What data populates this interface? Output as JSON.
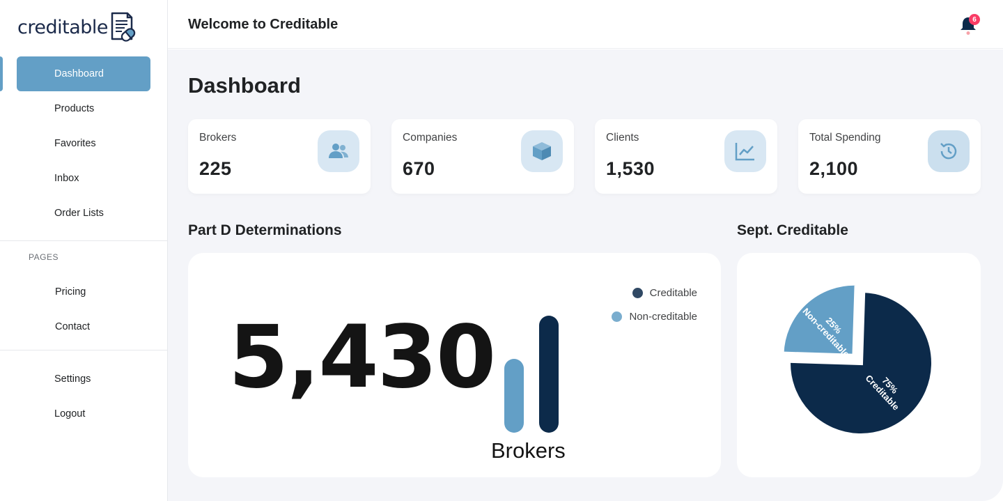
{
  "app": {
    "logo_text": "creditable",
    "welcome": "Welcome to Creditable",
    "notifications_count": "6"
  },
  "sidebar": {
    "items": [
      {
        "label": "Dashboard",
        "active": true
      },
      {
        "label": "Products"
      },
      {
        "label": "Favorites"
      },
      {
        "label": "Inbox"
      },
      {
        "label": "Order Lists"
      }
    ],
    "pages_label": "PAGES",
    "pages_items": [
      {
        "label": "Pricing"
      },
      {
        "label": "Contact"
      }
    ],
    "bottom_items": [
      {
        "label": "Settings"
      },
      {
        "label": "Logout"
      }
    ]
  },
  "main": {
    "title": "Dashboard",
    "stats": [
      {
        "label": "Brokers",
        "value": "225",
        "icon": "users-icon"
      },
      {
        "label": "Companies",
        "value": "670",
        "icon": "box-icon"
      },
      {
        "label": "Clients",
        "value": "1,530",
        "icon": "line-chart-icon"
      },
      {
        "label": "Total Spending",
        "value": "2,100",
        "icon": "history-icon"
      }
    ]
  },
  "colors": {
    "accent": "#639fc6",
    "dark_navy": "#0c2a4a",
    "icon_bg": "#d8e7f3",
    "badge": "#f93c65"
  },
  "chart_data": [
    {
      "type": "bar",
      "title": "Part D Determinations",
      "big_number": "5,430",
      "categories": [
        "Brokers"
      ],
      "series": [
        {
          "name": "Non-creditable",
          "values": [
            0.63
          ],
          "color": "#639fc6"
        },
        {
          "name": "Creditable",
          "values": [
            1.0
          ],
          "color": "#0c2a4a"
        }
      ],
      "legend": "top-right",
      "xlabel": "Brokers"
    },
    {
      "type": "pie",
      "title": "Sept. Creditable",
      "slices": [
        {
          "name": "Creditable",
          "value": 75,
          "label_pct": "75%",
          "color": "#0c2a4a"
        },
        {
          "name": "Non-creditable",
          "value": 25,
          "label_pct": "25%",
          "color": "#639fc6",
          "exploded": true
        }
      ]
    }
  ]
}
